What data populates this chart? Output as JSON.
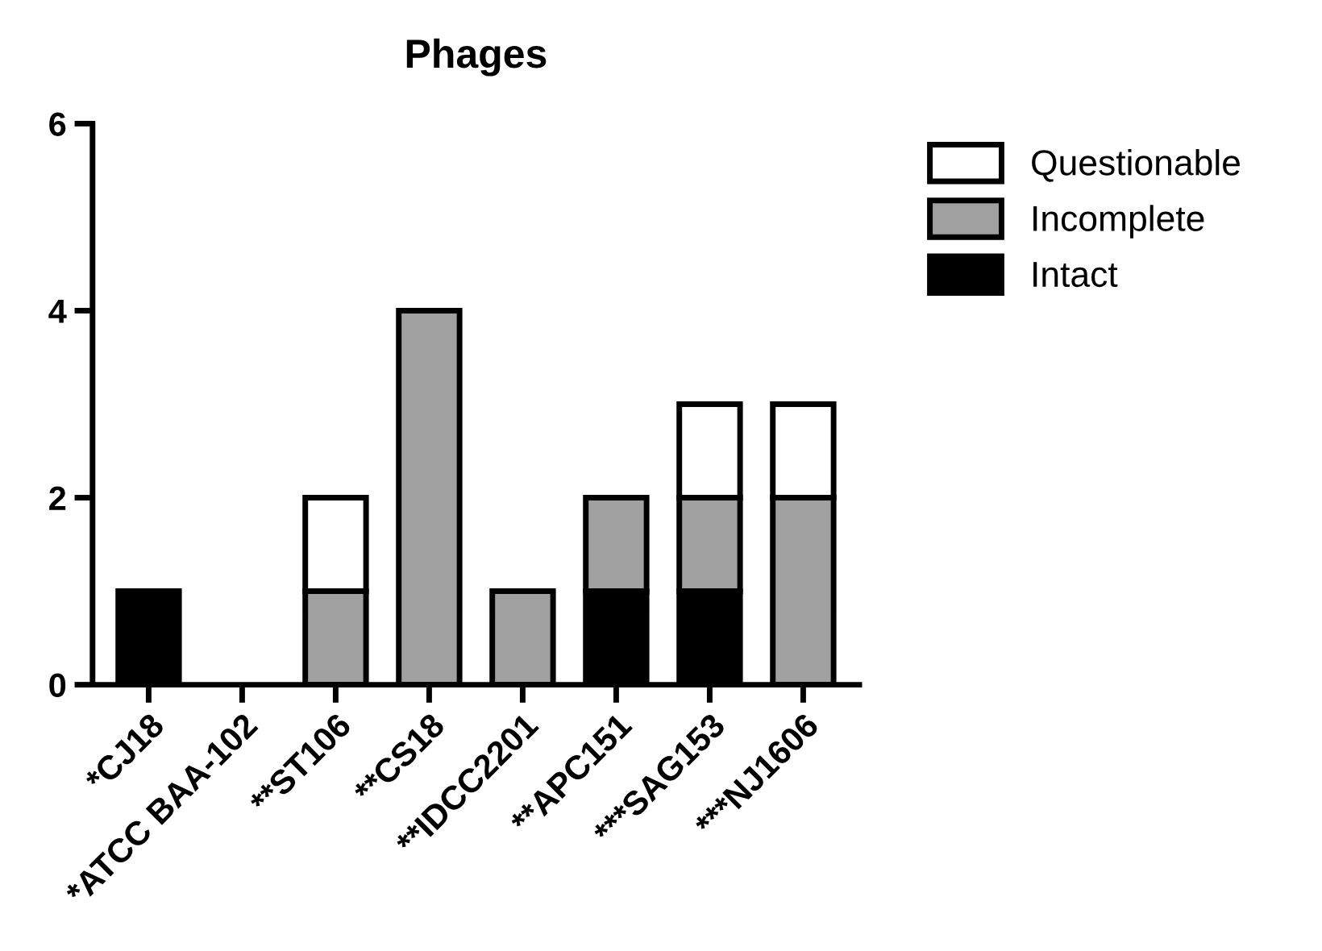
{
  "chart_data": {
    "type": "bar",
    "title": "Phages",
    "stacked": true,
    "categories": [
      "*CJ18",
      "*ATCC BAA-102",
      "**ST106",
      "**CS18",
      "**IDCC2201",
      "**APC151",
      "***SAG153",
      "***NJ1606"
    ],
    "series": [
      {
        "name": "Intact",
        "color": "#000000",
        "values": [
          1,
          0,
          0,
          0,
          0,
          1,
          1,
          0
        ]
      },
      {
        "name": "Incomplete",
        "color": "#a0a0a0",
        "values": [
          0,
          0,
          1,
          4,
          1,
          1,
          1,
          2
        ]
      },
      {
        "name": "Questionable",
        "color": "#ffffff",
        "values": [
          0,
          0,
          1,
          0,
          0,
          0,
          1,
          1
        ]
      }
    ],
    "ylim": [
      0,
      6
    ],
    "yticks": [
      0,
      2,
      4,
      6
    ],
    "grid": false,
    "legend": "top right"
  }
}
